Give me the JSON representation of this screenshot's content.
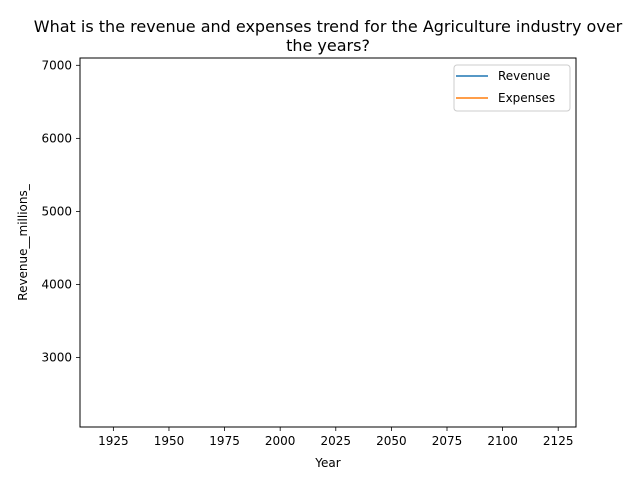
{
  "chart_data": {
    "type": "line",
    "title_lines": [
      "What is the revenue and expenses trend for the Agriculture industry over",
      "the years?"
    ],
    "xlabel": "Year",
    "ylabel": "Revenue__millions_",
    "xlim": [
      1910,
      2133
    ],
    "ylim": [
      2050,
      7100
    ],
    "xticks": [
      1925,
      1950,
      1975,
      2000,
      2025,
      2050,
      2075,
      2100,
      2125
    ],
    "yticks": [
      3000,
      4000,
      5000,
      6000,
      7000
    ],
    "legend_position": "top-right",
    "grid": false,
    "series": [
      {
        "name": "Revenue",
        "color": "#1f77b4",
        "x": [],
        "y": []
      },
      {
        "name": "Expenses",
        "color": "#ff7f0e",
        "x": [],
        "y": []
      }
    ]
  }
}
